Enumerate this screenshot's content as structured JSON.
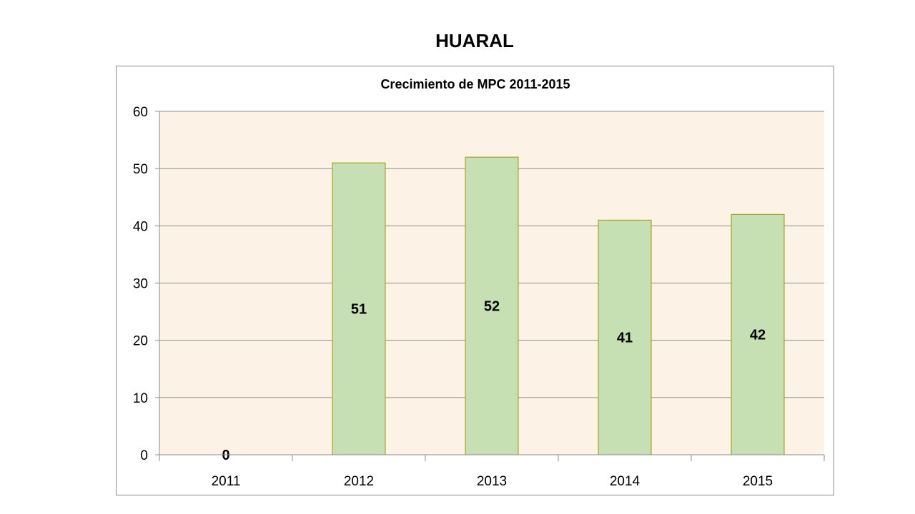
{
  "page_title": "HUARAL",
  "chart_data": {
    "type": "bar",
    "title": "Crecimiento de MPC 2011-2015",
    "xlabel": "",
    "ylabel": "",
    "categories": [
      "2011",
      "2012",
      "2013",
      "2014",
      "2015"
    ],
    "values": [
      0,
      51,
      52,
      41,
      42
    ],
    "data_labels": [
      "0",
      "51",
      "52",
      "41",
      "42"
    ],
    "ylim": [
      0,
      60
    ],
    "yticks": [
      "0",
      "10",
      "20",
      "30",
      "40",
      "50",
      "60"
    ],
    "grid": true,
    "legend": "none",
    "colors": {
      "bar_fill": "#c6e0b4",
      "bar_stroke": "#9a9a00",
      "plot_background": "#fdf2e6",
      "gridline": "#8c8c8c"
    }
  }
}
